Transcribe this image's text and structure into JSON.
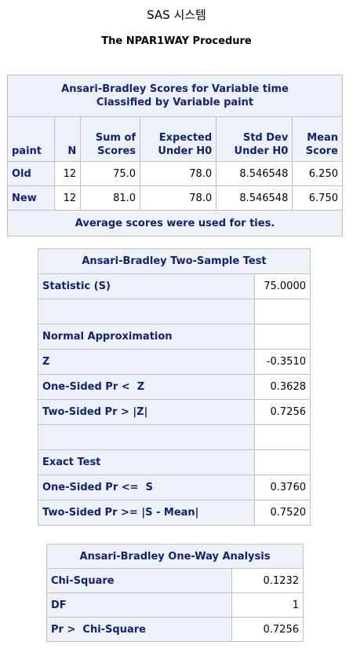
{
  "system_title": "SAS 시스템",
  "procedure_title": "The NPAR1WAY Procedure",
  "scores_table": {
    "title_line1": "Ansari-Bradley Scores for Variable time",
    "title_line2": "Classified by Variable paint",
    "columns": {
      "paint": "paint",
      "n": "N",
      "sum_line1": "Sum of",
      "sum_line2": "Scores",
      "expected_line1": "Expected",
      "expected_line2": "Under H0",
      "stddev_line1": "Std Dev",
      "stddev_line2": "Under H0",
      "mean_line1": "Mean",
      "mean_line2": "Score"
    },
    "rows": [
      {
        "paint": "Old",
        "n": "12",
        "sum": "75.0",
        "expected": "78.0",
        "stddev": "8.546548",
        "mean": "6.250"
      },
      {
        "paint": "New",
        "n": "12",
        "sum": "81.0",
        "expected": "78.0",
        "stddev": "8.546548",
        "mean": "6.750"
      }
    ],
    "footnote": "Average scores were used for ties."
  },
  "test_table": {
    "title": "Ansari-Bradley Two-Sample Test",
    "rows": [
      {
        "label": "Statistic (S)",
        "value": "75.0000"
      },
      {
        "label": "",
        "value": ""
      },
      {
        "label": "Normal Approximation",
        "value": ""
      },
      {
        "label": "Z",
        "value": "-0.3510"
      },
      {
        "label": "One-Sided Pr <  Z",
        "value": "0.3628"
      },
      {
        "label": "Two-Sided Pr > |Z|",
        "value": "0.7256"
      },
      {
        "label": "",
        "value": ""
      },
      {
        "label": "Exact Test",
        "value": ""
      },
      {
        "label": "One-Sided Pr <=  S",
        "value": "0.3760"
      },
      {
        "label": "Two-Sided Pr >= |S - Mean|",
        "value": "0.7520"
      }
    ]
  },
  "oneway_table": {
    "title": "Ansari-Bradley One-Way Analysis",
    "rows": [
      {
        "label": "Chi-Square",
        "value": "0.1232"
      },
      {
        "label": "DF",
        "value": "1"
      },
      {
        "label": "Pr >  Chi-Square",
        "value": "0.7256"
      }
    ]
  },
  "colors": {
    "header_bg": "#edf2f9",
    "header_text": "#112277",
    "border": "#c1c1c1"
  }
}
